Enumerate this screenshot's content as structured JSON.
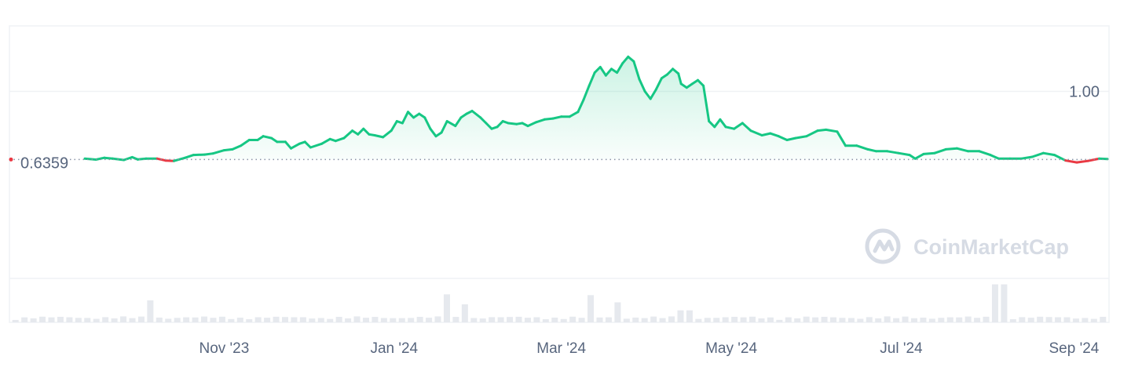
{
  "watermark": {
    "text": "CoinMarketCap"
  },
  "colors": {
    "up": "#16c784",
    "down": "#ea3943",
    "grid": "#eff2f5",
    "text": "#58667e",
    "volume": "#e6e9ee"
  },
  "chart_data": {
    "type": "area",
    "title": "",
    "xlabel": "",
    "ylabel": "",
    "baseline": {
      "value": 0.6359,
      "label": "0.6359",
      "style": "dotted"
    },
    "y_tick_labels": [
      {
        "value": 1.0,
        "label": "1.00"
      }
    ],
    "ylim": [
      0.0,
      1.35
    ],
    "x_domain": [
      "2023-09-12",
      "2024-09-13"
    ],
    "x_tick_labels": [
      {
        "date": "2023-11-01",
        "label": "Nov '23"
      },
      {
        "date": "2024-01-01",
        "label": "Jan '24"
      },
      {
        "date": "2024-03-01",
        "label": "Mar '24"
      },
      {
        "date": "2024-05-01",
        "label": "May '24"
      },
      {
        "date": "2024-07-01",
        "label": "Jul '24"
      },
      {
        "date": "2024-09-01",
        "label": "Sep '24"
      }
    ],
    "grid": true,
    "legend": "none",
    "series": [
      {
        "points": [
          [
            "2023-09-12",
            0.64
          ],
          [
            "2023-09-16",
            0.635
          ],
          [
            "2023-09-19",
            0.645
          ],
          [
            "2023-09-22",
            0.64
          ],
          [
            "2023-09-26",
            0.633
          ],
          [
            "2023-09-29",
            0.648
          ],
          [
            "2023-10-01",
            0.636
          ],
          [
            "2023-10-04",
            0.64
          ],
          [
            "2023-10-08",
            0.64
          ],
          [
            "2023-10-11",
            0.63
          ],
          [
            "2023-10-14",
            0.628
          ],
          [
            "2023-10-18",
            0.645
          ],
          [
            "2023-10-21",
            0.66
          ],
          [
            "2023-10-25",
            0.662
          ],
          [
            "2023-10-28",
            0.668
          ],
          [
            "2023-11-01",
            0.685
          ],
          [
            "2023-11-04",
            0.69
          ],
          [
            "2023-11-07",
            0.71
          ],
          [
            "2023-11-10",
            0.74
          ],
          [
            "2023-11-13",
            0.74
          ],
          [
            "2023-11-15",
            0.76
          ],
          [
            "2023-11-18",
            0.75
          ],
          [
            "2023-11-20",
            0.73
          ],
          [
            "2023-11-23",
            0.73
          ],
          [
            "2023-11-25",
            0.695
          ],
          [
            "2023-11-28",
            0.72
          ],
          [
            "2023-11-30",
            0.73
          ],
          [
            "2023-12-02",
            0.7
          ],
          [
            "2023-12-06",
            0.72
          ],
          [
            "2023-12-09",
            0.745
          ],
          [
            "2023-12-11",
            0.735
          ],
          [
            "2023-12-14",
            0.75
          ],
          [
            "2023-12-17",
            0.79
          ],
          [
            "2023-12-19",
            0.77
          ],
          [
            "2023-12-21",
            0.8
          ],
          [
            "2023-12-23",
            0.77
          ],
          [
            "2023-12-25",
            0.765
          ],
          [
            "2023-12-28",
            0.755
          ],
          [
            "2023-12-31",
            0.79
          ],
          [
            "2024-01-02",
            0.84
          ],
          [
            "2024-01-04",
            0.83
          ],
          [
            "2024-01-06",
            0.89
          ],
          [
            "2024-01-08",
            0.86
          ],
          [
            "2024-01-10",
            0.88
          ],
          [
            "2024-01-12",
            0.86
          ],
          [
            "2024-01-14",
            0.8
          ],
          [
            "2024-01-16",
            0.76
          ],
          [
            "2024-01-18",
            0.78
          ],
          [
            "2024-01-20",
            0.84
          ],
          [
            "2024-01-23",
            0.815
          ],
          [
            "2024-01-25",
            0.86
          ],
          [
            "2024-01-27",
            0.88
          ],
          [
            "2024-01-29",
            0.895
          ],
          [
            "2024-02-01",
            0.86
          ],
          [
            "2024-02-03",
            0.83
          ],
          [
            "2024-02-05",
            0.8
          ],
          [
            "2024-02-07",
            0.81
          ],
          [
            "2024-02-09",
            0.84
          ],
          [
            "2024-02-11",
            0.83
          ],
          [
            "2024-02-14",
            0.825
          ],
          [
            "2024-02-16",
            0.83
          ],
          [
            "2024-02-18",
            0.815
          ],
          [
            "2024-02-21",
            0.835
          ],
          [
            "2024-02-24",
            0.85
          ],
          [
            "2024-02-27",
            0.855
          ],
          [
            "2024-03-01",
            0.865
          ],
          [
            "2024-03-04",
            0.865
          ],
          [
            "2024-03-07",
            0.89
          ],
          [
            "2024-03-09",
            0.955
          ],
          [
            "2024-03-11",
            1.03
          ],
          [
            "2024-03-13",
            1.1
          ],
          [
            "2024-03-15",
            1.13
          ],
          [
            "2024-03-17",
            1.085
          ],
          [
            "2024-03-19",
            1.12
          ],
          [
            "2024-03-21",
            1.1
          ],
          [
            "2024-03-23",
            1.15
          ],
          [
            "2024-03-25",
            1.185
          ],
          [
            "2024-03-27",
            1.16
          ],
          [
            "2024-03-29",
            1.065
          ],
          [
            "2024-03-31",
            1.0
          ],
          [
            "2024-04-02",
            0.96
          ],
          [
            "2024-04-04",
            1.01
          ],
          [
            "2024-04-06",
            1.07
          ],
          [
            "2024-04-08",
            1.09
          ],
          [
            "2024-04-10",
            1.12
          ],
          [
            "2024-04-12",
            1.095
          ],
          [
            "2024-04-13",
            1.04
          ],
          [
            "2024-04-15",
            1.02
          ],
          [
            "2024-04-17",
            1.04
          ],
          [
            "2024-04-19",
            1.06
          ],
          [
            "2024-04-21",
            1.03
          ],
          [
            "2024-04-23",
            0.84
          ],
          [
            "2024-04-25",
            0.81
          ],
          [
            "2024-04-27",
            0.85
          ],
          [
            "2024-04-29",
            0.81
          ],
          [
            "2024-05-02",
            0.8
          ],
          [
            "2024-05-05",
            0.83
          ],
          [
            "2024-05-08",
            0.79
          ],
          [
            "2024-05-12",
            0.765
          ],
          [
            "2024-05-15",
            0.775
          ],
          [
            "2024-05-18",
            0.76
          ],
          [
            "2024-05-21",
            0.74
          ],
          [
            "2024-05-24",
            0.75
          ],
          [
            "2024-05-28",
            0.76
          ],
          [
            "2024-06-01",
            0.79
          ],
          [
            "2024-06-04",
            0.795
          ],
          [
            "2024-06-08",
            0.785
          ],
          [
            "2024-06-11",
            0.71
          ],
          [
            "2024-06-15",
            0.71
          ],
          [
            "2024-06-19",
            0.69
          ],
          [
            "2024-06-22",
            0.68
          ],
          [
            "2024-06-26",
            0.68
          ],
          [
            "2024-06-30",
            0.67
          ],
          [
            "2024-07-04",
            0.66
          ],
          [
            "2024-07-06",
            0.64
          ],
          [
            "2024-07-09",
            0.665
          ],
          [
            "2024-07-13",
            0.67
          ],
          [
            "2024-07-17",
            0.69
          ],
          [
            "2024-07-21",
            0.695
          ],
          [
            "2024-07-25",
            0.68
          ],
          [
            "2024-07-29",
            0.68
          ],
          [
            "2024-08-02",
            0.66
          ],
          [
            "2024-08-05",
            0.64
          ],
          [
            "2024-08-09",
            0.64
          ],
          [
            "2024-08-13",
            0.64
          ],
          [
            "2024-08-17",
            0.65
          ],
          [
            "2024-08-21",
            0.67
          ],
          [
            "2024-08-25",
            0.66
          ],
          [
            "2024-08-29",
            0.63
          ],
          [
            "2024-09-02",
            0.62
          ],
          [
            "2024-09-06",
            0.628
          ],
          [
            "2024-09-10",
            0.64
          ],
          [
            "2024-09-13",
            0.638
          ]
        ]
      }
    ],
    "volume_bars": {
      "count": 122,
      "peaks": [
        {
          "date": "2023-10-06",
          "value": 0.55
        },
        {
          "date": "2024-01-20",
          "value": 0.7
        },
        {
          "date": "2024-01-27",
          "value": 0.45
        },
        {
          "date": "2024-03-12",
          "value": 0.68
        },
        {
          "date": "2024-03-21",
          "value": 0.5
        },
        {
          "date": "2024-04-15",
          "value": 0.3
        },
        {
          "date": "2024-08-05",
          "value": 0.95
        }
      ]
    }
  }
}
